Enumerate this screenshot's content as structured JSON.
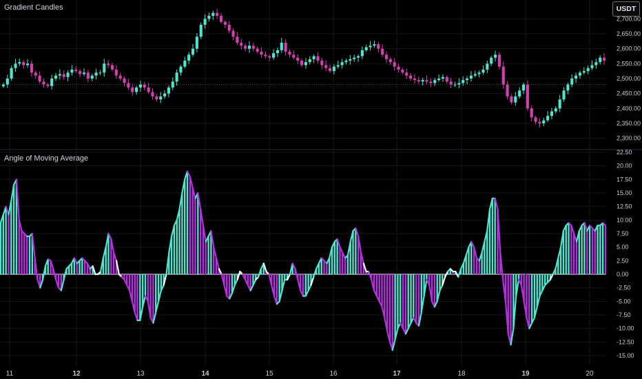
{
  "top_pane": {
    "title": "Gradient Candles",
    "currency_button": "USDT",
    "y_ticks": [
      "2,700.00",
      "2,650.00",
      "2,600.00",
      "2,550.00",
      "2,500.00",
      "2,450.00",
      "2,400.00",
      "2,350.00",
      "2,300.00"
    ]
  },
  "bottom_pane": {
    "title": "Angle of Moving Average",
    "y_ticks": [
      "22.50",
      "20.00",
      "17.50",
      "15.00",
      "12.50",
      "10.00",
      "7.50",
      "5.00",
      "2.50",
      "0.00",
      "-2.50",
      "-5.00",
      "-7.50",
      "-10.00",
      "-12.50",
      "-15.00"
    ]
  },
  "x_axis": {
    "labels": [
      "11",
      "12",
      "13",
      "14",
      "15",
      "16",
      "17",
      "18",
      "19",
      "20"
    ],
    "bold_labels": [
      "12",
      "14",
      "17",
      "19"
    ]
  },
  "colors": {
    "background": "#000000",
    "bull": "#4ee6d0",
    "bear": "#d63fb0",
    "angle_pos": "#4ee6d0",
    "angle_neg": "#b62fe0",
    "neutral": "#ffffff"
  },
  "chart_data": [
    {
      "type": "candlestick",
      "title": "Gradient Candles",
      "ylim": [
        2290,
        2740
      ],
      "close_series": [
        2480,
        2500,
        2535,
        2550,
        2555,
        2545,
        2550,
        2520,
        2510,
        2490,
        2480,
        2475,
        2500,
        2510,
        2515,
        2505,
        2520,
        2530,
        2525,
        2515,
        2520,
        2500,
        2510,
        2520,
        2520,
        2550,
        2545,
        2530,
        2510,
        2500,
        2485,
        2470,
        2455,
        2470,
        2480,
        2470,
        2455,
        2440,
        2430,
        2440,
        2450,
        2470,
        2490,
        2520,
        2540,
        2560,
        2580,
        2600,
        2640,
        2680,
        2700,
        2710,
        2720,
        2710,
        2690,
        2680,
        2660,
        2640,
        2620,
        2610,
        2600,
        2610,
        2600,
        2590,
        2580,
        2575,
        2570,
        2585,
        2595,
        2620,
        2590,
        2580,
        2570,
        2560,
        2545,
        2555,
        2565,
        2575,
        2560,
        2545,
        2535,
        2525,
        2540,
        2545,
        2555,
        2560,
        2565,
        2570,
        2575,
        2595,
        2605,
        2610,
        2615,
        2600,
        2580,
        2565,
        2555,
        2540,
        2530,
        2520,
        2510,
        2500,
        2495,
        2490,
        2495,
        2490,
        2485,
        2495,
        2500,
        2505,
        2490,
        2480,
        2480,
        2485,
        2495,
        2500,
        2510,
        2515,
        2520,
        2530,
        2550,
        2570,
        2580,
        2540,
        2480,
        2440,
        2420,
        2440,
        2460,
        2480,
        2400,
        2370,
        2355,
        2350,
        2360,
        2375,
        2390,
        2400,
        2430,
        2460,
        2480,
        2500,
        2510,
        2520,
        2525,
        2535,
        2545,
        2555,
        2570,
        2560
      ]
    },
    {
      "type": "area",
      "title": "Angle of Moving Average",
      "ylim": [
        -15,
        22.5
      ],
      "values": [
        9.5,
        11,
        12.5,
        11,
        13.5,
        16.5,
        17.5,
        10,
        8,
        7.5,
        7,
        7,
        7.5,
        3,
        -1,
        -2.5,
        -1,
        1.5,
        2.8,
        2.5,
        1,
        -1,
        -2.5,
        -3,
        -1,
        1,
        1.5,
        2,
        3,
        2,
        2.5,
        3,
        2.5,
        2,
        1,
        1.5,
        0,
        0,
        0.5,
        3,
        5,
        7.5,
        6.5,
        4,
        2.5,
        0,
        -0.5,
        -1,
        -2,
        -3,
        -5,
        -7,
        -8.5,
        -8.5,
        -6,
        -4,
        -5,
        -8,
        -9,
        -7,
        -5,
        -3,
        -2,
        0,
        4,
        7,
        9,
        10,
        12,
        15,
        17.5,
        19,
        18,
        16,
        14,
        15,
        12,
        9,
        6,
        7,
        8,
        5,
        3,
        1,
        0,
        -2,
        -4,
        -4.5,
        -3.5,
        -2,
        -1,
        0.5,
        0,
        -1,
        -2,
        -3,
        -2,
        -1,
        -0.5,
        1,
        2,
        0.5,
        0,
        -2,
        -4,
        -5.5,
        -5,
        -3,
        -1,
        -1,
        0,
        2,
        1,
        -1,
        -3,
        -4,
        -4,
        -3,
        -2,
        -0.5,
        1,
        2,
        3,
        2.5,
        2,
        3,
        5,
        6,
        6.5,
        5,
        4,
        3,
        3.5,
        6,
        8,
        8.5,
        7,
        4,
        2,
        0.5,
        0.5,
        -1,
        -3,
        -4,
        -5,
        -6,
        -8,
        -10.5,
        -12.5,
        -14,
        -12,
        -10,
        -9,
        -10,
        -11,
        -10,
        -9,
        -8,
        -9,
        -9.5,
        -7,
        -4,
        -1,
        -2,
        -5,
        -6,
        -5,
        -3,
        -2,
        -0.5,
        0.5,
        1,
        0.5,
        0.5,
        -0.5,
        1,
        2,
        3.5,
        5,
        6,
        5,
        3,
        2.5,
        4,
        6,
        8,
        12,
        14,
        14,
        12,
        4,
        -1,
        -5,
        -11,
        -13,
        -10,
        -4,
        -1,
        -2,
        -5,
        -8,
        -10,
        -9,
        -8,
        -6,
        -4,
        -3,
        -2,
        -1.5,
        -1,
        0,
        1,
        3,
        5,
        8,
        9,
        9.5,
        9,
        7.5,
        6,
        8,
        9,
        9.5,
        8,
        9,
        8.5,
        8,
        9,
        9,
        9.5,
        9
      ]
    }
  ]
}
